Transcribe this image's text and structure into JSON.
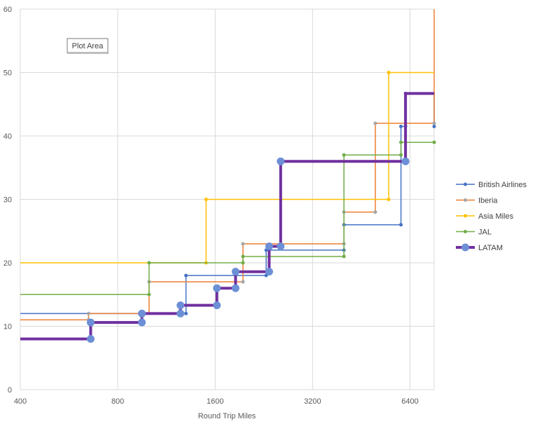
{
  "chart_data": {
    "type": "line",
    "step": true,
    "xscale": "log2",
    "xlabel": "Round Trip Miles",
    "ylabel": "",
    "xlim": [
      400,
      7600
    ],
    "ylim": [
      0,
      60
    ],
    "xticks": [
      400,
      800,
      1600,
      3200,
      6400
    ],
    "yticks": [
      0,
      10,
      20,
      30,
      40,
      50,
      60
    ],
    "grid": true,
    "legend": "right",
    "tooltip": "Plot Area",
    "series": [
      {
        "name": "British Airlines",
        "color": "#4472C4",
        "width": 1.5,
        "marker": 5,
        "points": [
          [
            400,
            12
          ],
          [
            650,
            12
          ],
          [
            1000,
            12
          ],
          [
            1300,
            12
          ],
          [
            1300,
            18
          ],
          [
            2300,
            18
          ],
          [
            2300,
            22
          ],
          [
            4000,
            22
          ],
          [
            4000,
            26
          ],
          [
            6000,
            26
          ],
          [
            6000,
            41.5
          ],
          [
            6200,
            41.5
          ],
          [
            6200,
            46.7
          ],
          [
            7600,
            46.7
          ],
          [
            7600,
            41.5
          ]
        ],
        "marked": [
          3,
          4,
          5,
          6,
          7,
          8,
          9,
          10,
          11,
          12,
          14
        ]
      },
      {
        "name": "Iberia",
        "color": "#ED7D31",
        "width": 1.5,
        "marker": 5,
        "points": [
          [
            400,
            11
          ],
          [
            650,
            11
          ],
          [
            650,
            12
          ],
          [
            1000,
            12
          ],
          [
            1000,
            17
          ],
          [
            1950,
            17
          ],
          [
            1950,
            23
          ],
          [
            4000,
            23
          ],
          [
            4000,
            28
          ],
          [
            5000,
            28
          ],
          [
            5000,
            42
          ],
          [
            7600,
            42
          ],
          [
            7600,
            60
          ]
        ],
        "marked": [
          1,
          2,
          4,
          5,
          6,
          7,
          8,
          9,
          10,
          11
        ],
        "marker_color": "#A5A5A5"
      },
      {
        "name": "Asia Miles",
        "color": "#FFC000",
        "width": 1.5,
        "marker": 5,
        "points": [
          [
            400,
            20
          ],
          [
            1500,
            20
          ],
          [
            1500,
            30
          ],
          [
            5500,
            30
          ],
          [
            5500,
            50
          ],
          [
            7600,
            50
          ]
        ],
        "marked": [
          1,
          2,
          3,
          4
        ]
      },
      {
        "name": "JAL",
        "color": "#70AD47",
        "width": 1.5,
        "marker": 5,
        "points": [
          [
            400,
            15
          ],
          [
            1000,
            15
          ],
          [
            1000,
            20
          ],
          [
            1950,
            20
          ],
          [
            1950,
            21
          ],
          [
            4000,
            21
          ],
          [
            4000,
            37
          ],
          [
            6000,
            37
          ],
          [
            6000,
            39
          ],
          [
            7600,
            39
          ]
        ],
        "marked": [
          1,
          2,
          3,
          4,
          5,
          6,
          7,
          8,
          9
        ]
      },
      {
        "name": "LATAM",
        "color": "#7030A0",
        "width": 4,
        "marker": 11,
        "marker_color": "#6C8FD6",
        "points": [
          [
            400,
            8
          ],
          [
            660,
            8
          ],
          [
            660,
            10.6
          ],
          [
            950,
            10.6
          ],
          [
            950,
            12
          ],
          [
            1250,
            12
          ],
          [
            1250,
            13.3
          ],
          [
            1620,
            13.3
          ],
          [
            1620,
            16
          ],
          [
            1850,
            16
          ],
          [
            1850,
            18.6
          ],
          [
            2350,
            18.6
          ],
          [
            2350,
            22.6
          ],
          [
            2550,
            22.6
          ],
          [
            2550,
            36
          ],
          [
            6200,
            36
          ],
          [
            6200,
            46.7
          ],
          [
            7600,
            46.7
          ]
        ],
        "marked": [
          1,
          2,
          3,
          4,
          5,
          6,
          7,
          8,
          9,
          10,
          11,
          12,
          13,
          14,
          15
        ]
      }
    ]
  }
}
